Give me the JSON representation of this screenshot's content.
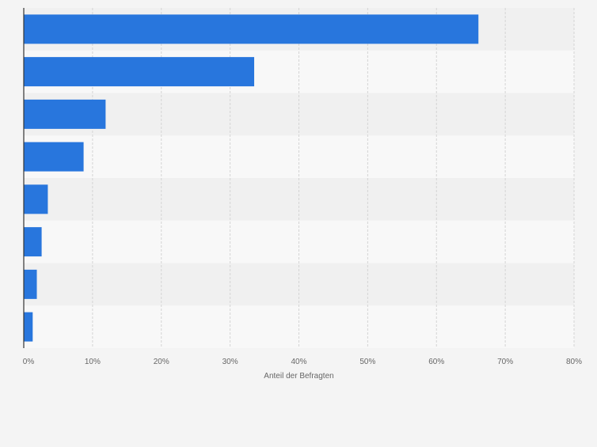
{
  "chart_data": {
    "type": "bar",
    "orientation": "horizontal",
    "categories": [
      "",
      "",
      "",
      "",
      "",
      "",
      "",
      ""
    ],
    "values": [
      66.1,
      33.5,
      11.9,
      8.7,
      3.5,
      2.6,
      1.9,
      1.3
    ],
    "xlabel": "Anteil der Befragten",
    "ylabel": "",
    "xlim": [
      0,
      80
    ],
    "ticks": [
      0,
      10,
      20,
      30,
      40,
      50,
      60,
      70,
      80
    ],
    "tick_labels": [
      "0%",
      "10%",
      "20%",
      "30%",
      "40%",
      "50%",
      "60%",
      "70%",
      "80%"
    ],
    "grid": true,
    "legend": "none",
    "colors": {
      "bar": "#2876dd",
      "band_dark": "#f0f0f0",
      "band_light": "#f8f8f8",
      "grid": "#d4d4d4",
      "axis": "#333333",
      "tick_text": "#666666",
      "label_text": "#666666",
      "background": "#f4f4f4"
    }
  }
}
